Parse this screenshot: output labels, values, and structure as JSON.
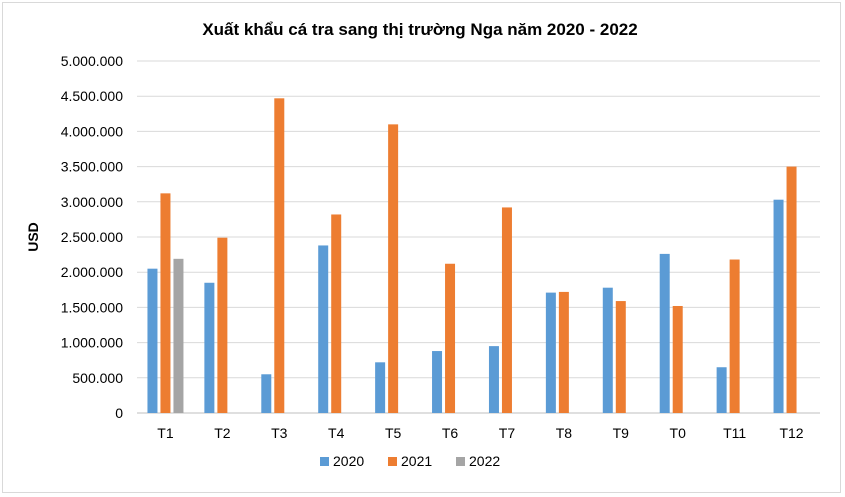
{
  "chart_data": {
    "type": "bar",
    "title": "Xuất khẩu cá tra sang thị trường Nga năm 2020 - 2022",
    "xlabel": "",
    "ylabel": "USD",
    "ylim": [
      0,
      5000000
    ],
    "yticks": [
      0,
      500000,
      1000000,
      1500000,
      2000000,
      2500000,
      3000000,
      3500000,
      4000000,
      4500000,
      5000000
    ],
    "ytick_labels": [
      "0",
      "500.000",
      "1.000.000",
      "1.500.000",
      "2.000.000",
      "2.500.000",
      "3.000.000",
      "3.500.000",
      "4.000.000",
      "4.500.000",
      "5.000.000"
    ],
    "grid": true,
    "legend_position": "bottom",
    "categories": [
      "T1",
      "T2",
      "T3",
      "T4",
      "T5",
      "T6",
      "T7",
      "T8",
      "T9",
      "T0",
      "T11",
      "T12"
    ],
    "series": [
      {
        "name": "2020",
        "color": "#5b9bd5",
        "values": [
          2050000,
          1850000,
          550000,
          2380000,
          720000,
          880000,
          950000,
          1710000,
          1780000,
          2260000,
          650000,
          3030000
        ]
      },
      {
        "name": "2021",
        "color": "#ed7d31",
        "values": [
          3120000,
          2490000,
          4470000,
          2820000,
          4100000,
          2120000,
          2920000,
          1720000,
          1590000,
          1520000,
          2180000,
          3500000
        ]
      },
      {
        "name": "2022",
        "color": "#a5a5a5",
        "values": [
          2190000,
          null,
          null,
          null,
          null,
          null,
          null,
          null,
          null,
          null,
          null,
          null
        ]
      }
    ]
  }
}
